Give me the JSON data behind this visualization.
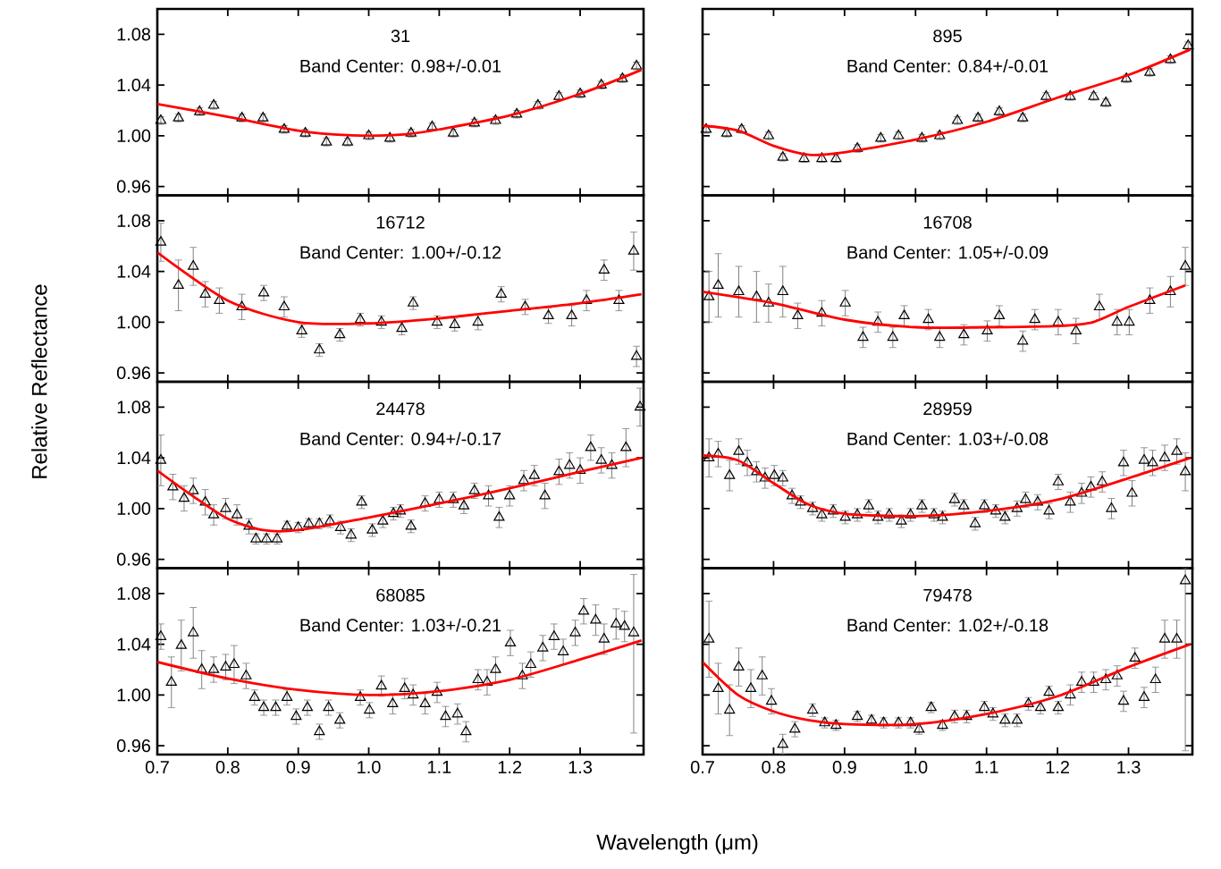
{
  "chart_data": [
    {
      "type": "scatter",
      "title": "31",
      "annotations": [
        "Band Center: 0.98+/-0.01"
      ],
      "xlim": [
        0.7,
        1.39
      ],
      "ylim": [
        0.953,
        1.1
      ],
      "xticks": [
        {
          "value": 0.7,
          "label": null
        },
        {
          "value": 0.8,
          "label": null
        },
        {
          "value": 0.9,
          "label": null
        },
        {
          "value": 1,
          "label": null
        },
        {
          "value": 1.1,
          "label": null
        },
        {
          "value": 1.2,
          "label": null
        },
        {
          "value": 1.3,
          "label": null
        }
      ],
      "yticks": [
        0.96,
        {
          "value": 1,
          "label": "1.00"
        },
        1.04,
        1.08
      ],
      "tick_labels": "y",
      "series": [
        {
          "color": "#000000",
          "marker": "triangle",
          "x": [
            0.705,
            0.73,
            0.76,
            0.78,
            0.82,
            0.85,
            0.88,
            0.91,
            0.94,
            0.97,
            1.0,
            1.03,
            1.06,
            1.09,
            1.12,
            1.15,
            1.18,
            1.21,
            1.24,
            1.27,
            1.3,
            1.33,
            1.36,
            1.38
          ],
          "values": [
            1.012,
            1.014,
            1.019,
            1.024,
            1.014,
            1.014,
            1.005,
            1.002,
            0.995,
            0.995,
            1.0,
            0.998,
            1.002,
            1.007,
            1.002,
            1.01,
            1.012,
            1.017,
            1.024,
            1.031,
            1.033,
            1.04,
            1.045,
            1.055
          ],
          "errors": [
            0.003,
            0.003,
            0.003,
            0.003,
            0.003,
            0.003,
            0.003,
            0.003,
            0.003,
            0.003,
            0.003,
            0.003,
            0.003,
            0.003,
            0.003,
            0.003,
            0.003,
            0.003,
            0.003,
            0.003,
            0.003,
            0.003,
            0.003,
            0.003
          ]
        },
        {
          "type": "line",
          "color": "#ff0000",
          "x": [
            0.7,
            0.8,
            0.9,
            0.95,
            1.0,
            1.05,
            1.1,
            1.2,
            1.3,
            1.387
          ],
          "values": [
            1.025,
            1.015,
            1.004,
            1.001,
            1.0,
            1.001,
            1.005,
            1.016,
            1.033,
            1.052
          ]
        }
      ]
    },
    {
      "type": "scatter",
      "title": "895",
      "annotations": [
        "Band Center: 0.84+/-0.01"
      ],
      "xlim": [
        0.7,
        1.39
      ],
      "ylim": [
        0.953,
        1.1
      ],
      "xticks": [
        {
          "value": 0.7,
          "label": null
        },
        {
          "value": 0.8,
          "label": null
        },
        {
          "value": 0.9,
          "label": null
        },
        {
          "value": 1,
          "label": null
        },
        {
          "value": 1.1,
          "label": null
        },
        {
          "value": 1.2,
          "label": null
        },
        {
          "value": 1.3,
          "label": null
        }
      ],
      "yticks": [
        {
          "value": 0.96,
          "label": null
        },
        {
          "value": 1,
          "label": null
        },
        {
          "value": 1.04,
          "label": null
        },
        {
          "value": 1.08,
          "label": null
        }
      ],
      "tick_labels": false,
      "series": [
        {
          "color": "#000000",
          "marker": "triangle",
          "x": [
            0.705,
            0.734,
            0.755,
            0.793,
            0.813,
            0.843,
            0.868,
            0.888,
            0.918,
            0.951,
            0.976,
            1.009,
            1.034,
            1.059,
            1.088,
            1.118,
            1.151,
            1.184,
            1.218,
            1.251,
            1.268,
            1.297,
            1.33,
            1.359,
            1.384
          ],
          "values": [
            1.005,
            1.002,
            1.005,
            1.0,
            0.983,
            0.982,
            0.982,
            0.982,
            0.99,
            0.998,
            1.0,
            0.998,
            1.0,
            1.012,
            1.014,
            1.019,
            1.014,
            1.031,
            1.031,
            1.031,
            1.026,
            1.045,
            1.05,
            1.06,
            1.071
          ],
          "errors": [
            0.003,
            0.003,
            0.003,
            0.003,
            0.003,
            0.003,
            0.003,
            0.003,
            0.003,
            0.003,
            0.003,
            0.003,
            0.003,
            0.003,
            0.003,
            0.003,
            0.003,
            0.003,
            0.003,
            0.003,
            0.003,
            0.003,
            0.003,
            0.003,
            0.003
          ]
        },
        {
          "type": "line",
          "color": "#ff0000",
          "x": [
            0.7,
            0.75,
            0.8,
            0.85,
            0.9,
            1.0,
            1.1,
            1.2,
            1.3,
            1.387
          ],
          "values": [
            1.008,
            1.004,
            0.992,
            0.985,
            0.987,
            0.997,
            1.011,
            1.03,
            1.048,
            1.068
          ]
        }
      ]
    },
    {
      "type": "scatter",
      "title": "16712",
      "annotations": [
        "Band Center: 1.00+/-0.12"
      ],
      "xlim": [
        0.7,
        1.39
      ],
      "ylim": [
        0.953,
        1.1
      ],
      "xticks": [
        {
          "value": 0.7,
          "label": null
        },
        {
          "value": 0.8,
          "label": null
        },
        {
          "value": 0.9,
          "label": null
        },
        {
          "value": 1,
          "label": null
        },
        {
          "value": 1.1,
          "label": null
        },
        {
          "value": 1.2,
          "label": null
        },
        {
          "value": 1.3,
          "label": null
        }
      ],
      "yticks": [
        0.96,
        {
          "value": 1,
          "label": "1.00"
        },
        1.04,
        1.08
      ],
      "tick_labels": "y",
      "series": [
        {
          "color": "#000000",
          "marker": "triangle",
          "x": [
            0.705,
            0.73,
            0.751,
            0.768,
            0.788,
            0.82,
            0.851,
            0.88,
            0.905,
            0.93,
            0.959,
            0.988,
            1.018,
            1.047,
            1.063,
            1.097,
            1.122,
            1.155,
            1.188,
            1.222,
            1.255,
            1.288,
            1.309,
            1.334,
            1.355,
            1.376,
            1.38
          ],
          "values": [
            1.063,
            1.029,
            1.044,
            1.022,
            1.017,
            1.012,
            1.023,
            1.012,
            0.993,
            0.978,
            0.99,
            1.002,
            1.0,
            0.995,
            1.015,
            1.0,
            0.998,
            1.0,
            1.022,
            1.012,
            1.005,
            1.005,
            1.017,
            1.041,
            1.017,
            1.056,
            0.973
          ],
          "errors": [
            0.015,
            0.02,
            0.015,
            0.01,
            0.01,
            0.01,
            0.006,
            0.008,
            0.005,
            0.005,
            0.005,
            0.005,
            0.005,
            0.005,
            0.005,
            0.005,
            0.005,
            0.006,
            0.006,
            0.006,
            0.006,
            0.008,
            0.008,
            0.008,
            0.008,
            0.015,
            0.008
          ]
        },
        {
          "type": "line",
          "color": "#ff0000",
          "x": [
            0.7,
            0.8,
            0.9,
            1.0,
            1.1,
            1.2,
            1.3,
            1.387
          ],
          "values": [
            1.055,
            1.017,
            1.0,
            0.999,
            1.003,
            1.009,
            1.015,
            1.022
          ]
        }
      ]
    },
    {
      "type": "scatter",
      "title": "16708",
      "annotations": [
        "Band Center: 1.05+/-0.09"
      ],
      "xlim": [
        0.7,
        1.39
      ],
      "ylim": [
        0.953,
        1.1
      ],
      "xticks": [
        {
          "value": 0.7,
          "label": null
        },
        {
          "value": 0.8,
          "label": null
        },
        {
          "value": 0.9,
          "label": null
        },
        {
          "value": 1,
          "label": null
        },
        {
          "value": 1.1,
          "label": null
        },
        {
          "value": 1.2,
          "label": null
        },
        {
          "value": 1.3,
          "label": null
        }
      ],
      "yticks": [
        {
          "value": 0.96,
          "label": null
        },
        {
          "value": 1,
          "label": null
        },
        {
          "value": 1.04,
          "label": null
        },
        {
          "value": 1.08,
          "label": null
        }
      ],
      "tick_labels": false,
      "series": [
        {
          "color": "#000000",
          "marker": "triangle",
          "x": [
            0.709,
            0.722,
            0.751,
            0.776,
            0.793,
            0.813,
            0.834,
            0.868,
            0.901,
            0.926,
            0.947,
            0.968,
            0.984,
            1.018,
            1.034,
            1.068,
            1.101,
            1.118,
            1.151,
            1.168,
            1.201,
            1.226,
            1.259,
            1.284,
            1.301,
            1.33,
            1.359,
            1.38
          ],
          "values": [
            1.02,
            1.029,
            1.024,
            1.02,
            1.015,
            1.024,
            1.005,
            1.007,
            1.015,
            0.988,
            1.0,
            0.988,
            1.005,
            1.002,
            0.988,
            0.99,
            0.993,
            1.005,
            0.985,
            1.002,
            1.0,
            0.993,
            1.012,
            1.0,
            1.0,
            1.017,
            1.024,
            1.044
          ],
          "errors": [
            0.02,
            0.025,
            0.02,
            0.02,
            0.015,
            0.02,
            0.01,
            0.01,
            0.01,
            0.008,
            0.008,
            0.008,
            0.008,
            0.008,
            0.008,
            0.008,
            0.008,
            0.008,
            0.008,
            0.008,
            0.01,
            0.01,
            0.01,
            0.01,
            0.01,
            0.01,
            0.012,
            0.015
          ]
        },
        {
          "type": "line",
          "color": "#ff0000",
          "x": [
            0.7,
            0.8,
            0.9,
            1.0,
            1.1,
            1.2,
            1.25,
            1.3,
            1.38
          ],
          "values": [
            1.024,
            1.015,
            1.002,
            0.996,
            0.996,
            0.997,
            1.0,
            1.012,
            1.029
          ]
        }
      ]
    },
    {
      "type": "scatter",
      "title": "24478",
      "annotations": [
        "Band Center: 0.94+/-0.17"
      ],
      "ylabel": "Relative Reflectance",
      "xlim": [
        0.7,
        1.39
      ],
      "ylim": [
        0.953,
        1.1
      ],
      "xticks": [
        {
          "value": 0.7,
          "label": null
        },
        {
          "value": 0.8,
          "label": null
        },
        {
          "value": 0.9,
          "label": null
        },
        {
          "value": 1,
          "label": null
        },
        {
          "value": 1.1,
          "label": null
        },
        {
          "value": 1.2,
          "label": null
        },
        {
          "value": 1.3,
          "label": null
        }
      ],
      "yticks": [
        0.96,
        {
          "value": 1,
          "label": "1.00"
        },
        1.04,
        1.08
      ],
      "tick_labels": "y",
      "series": [
        {
          "color": "#000000",
          "marker": "triangle",
          "x": [
            0.705,
            0.722,
            0.738,
            0.751,
            0.768,
            0.78,
            0.797,
            0.813,
            0.83,
            0.84,
            0.855,
            0.87,
            0.884,
            0.9,
            0.915,
            0.93,
            0.945,
            0.96,
            0.975,
            0.99,
            1.005,
            1.02,
            1.035,
            1.045,
            1.06,
            1.08,
            1.1,
            1.12,
            1.135,
            1.15,
            1.17,
            1.185,
            1.2,
            1.22,
            1.235,
            1.25,
            1.27,
            1.285,
            1.3,
            1.315,
            1.33,
            1.345,
            1.365,
            1.385
          ],
          "values": [
            1.038,
            1.017,
            1.008,
            1.014,
            1.005,
            0.995,
            1.0,
            0.995,
            0.986,
            0.976,
            0.976,
            0.976,
            0.986,
            0.985,
            0.988,
            0.988,
            0.99,
            0.985,
            0.979,
            1.005,
            0.983,
            0.99,
            0.996,
            0.998,
            0.986,
            1.004,
            1.007,
            1.007,
            1.002,
            1.014,
            1.01,
            0.993,
            1.01,
            1.022,
            1.026,
            1.01,
            1.029,
            1.034,
            1.03,
            1.048,
            1.038,
            1.034,
            1.048,
            1.08
          ],
          "errors": [
            0.02,
            0.01,
            0.01,
            0.01,
            0.01,
            0.008,
            0.008,
            0.008,
            0.006,
            0.004,
            0.004,
            0.004,
            0.004,
            0.004,
            0.004,
            0.004,
            0.005,
            0.005,
            0.005,
            0.005,
            0.005,
            0.005,
            0.005,
            0.005,
            0.005,
            0.006,
            0.006,
            0.006,
            0.006,
            0.006,
            0.008,
            0.008,
            0.008,
            0.008,
            0.008,
            0.01,
            0.01,
            0.01,
            0.01,
            0.01,
            0.01,
            0.01,
            0.015,
            0.015
          ]
        },
        {
          "type": "line",
          "color": "#ff0000",
          "x": [
            0.7,
            0.75,
            0.8,
            0.85,
            0.9,
            1.0,
            1.1,
            1.2,
            1.3,
            1.387
          ],
          "values": [
            1.03,
            1.01,
            0.992,
            0.983,
            0.983,
            0.993,
            1.004,
            1.016,
            1.029,
            1.04
          ]
        }
      ]
    },
    {
      "type": "scatter",
      "title": "28959",
      "annotations": [
        "Band Center: 1.03+/-0.08"
      ],
      "xlim": [
        0.7,
        1.39
      ],
      "ylim": [
        0.953,
        1.1
      ],
      "xticks": [
        {
          "value": 0.7,
          "label": null
        },
        {
          "value": 0.8,
          "label": null
        },
        {
          "value": 0.9,
          "label": null
        },
        {
          "value": 1,
          "label": null
        },
        {
          "value": 1.1,
          "label": null
        },
        {
          "value": 1.2,
          "label": null
        },
        {
          "value": 1.3,
          "label": null
        }
      ],
      "yticks": [
        {
          "value": 0.96,
          "label": null
        },
        {
          "value": 1,
          "label": null
        },
        {
          "value": 1.04,
          "label": null
        },
        {
          "value": 1.08,
          "label": null
        }
      ],
      "tick_labels": false,
      "series": [
        {
          "color": "#000000",
          "marker": "triangle",
          "x": [
            0.709,
            0.722,
            0.738,
            0.751,
            0.763,
            0.776,
            0.788,
            0.801,
            0.813,
            0.826,
            0.838,
            0.855,
            0.868,
            0.884,
            0.901,
            0.918,
            0.934,
            0.947,
            0.963,
            0.98,
            0.993,
            1.009,
            1.026,
            1.038,
            1.055,
            1.068,
            1.084,
            1.097,
            1.113,
            1.126,
            1.143,
            1.155,
            1.172,
            1.188,
            1.201,
            1.218,
            1.234,
            1.247,
            1.263,
            1.276,
            1.293,
            1.305,
            1.322,
            1.334,
            1.351,
            1.368,
            1.38
          ],
          "values": [
            1.04,
            1.043,
            1.026,
            1.045,
            1.036,
            1.029,
            1.024,
            1.026,
            1.024,
            1.01,
            1.005,
            1.0,
            0.995,
            0.998,
            0.993,
            0.995,
            1.002,
            0.993,
            0.995,
            0.99,
            0.995,
            1.002,
            0.995,
            0.993,
            1.007,
            1.002,
            0.988,
            1.002,
            0.998,
            0.993,
            1.0,
            1.007,
            1.005,
            0.998,
            1.021,
            1.005,
            1.012,
            1.017,
            1.021,
            1.0,
            1.036,
            1.012,
            1.038,
            1.036,
            1.04,
            1.045,
            1.029
          ],
          "errors": [
            0.015,
            0.01,
            0.012,
            0.01,
            0.01,
            0.008,
            0.008,
            0.008,
            0.006,
            0.006,
            0.005,
            0.005,
            0.005,
            0.005,
            0.005,
            0.005,
            0.005,
            0.005,
            0.005,
            0.005,
            0.005,
            0.005,
            0.005,
            0.005,
            0.005,
            0.005,
            0.005,
            0.005,
            0.005,
            0.005,
            0.006,
            0.006,
            0.006,
            0.006,
            0.006,
            0.008,
            0.008,
            0.008,
            0.008,
            0.008,
            0.01,
            0.01,
            0.01,
            0.01,
            0.01,
            0.01,
            0.015
          ]
        },
        {
          "type": "line",
          "color": "#ff0000",
          "x": [
            0.7,
            0.75,
            0.8,
            0.85,
            0.9,
            1.0,
            1.1,
            1.2,
            1.3,
            1.387
          ],
          "values": [
            1.042,
            1.038,
            1.02,
            1.003,
            0.996,
            0.994,
            0.998,
            1.007,
            1.024,
            1.04
          ]
        }
      ]
    },
    {
      "type": "scatter",
      "title": "68085",
      "annotations": [
        "Band Center: 1.03+/-0.21"
      ],
      "xlabel": "Wavelength (μm)",
      "xlim": [
        0.7,
        1.39
      ],
      "ylim": [
        0.953,
        1.1
      ],
      "xticks": [
        0.7,
        0.8,
        0.9,
        {
          "value": 1,
          "label": "1.0"
        },
        1.1,
        1.2,
        1.3
      ],
      "yticks": [
        0.96,
        {
          "value": 1,
          "label": "1.00"
        },
        1.04,
        1.08
      ],
      "series": [
        {
          "color": "#000000",
          "marker": "triangle",
          "x": [
            0.705,
            0.72,
            0.734,
            0.751,
            0.763,
            0.78,
            0.797,
            0.809,
            0.826,
            0.838,
            0.851,
            0.868,
            0.884,
            0.897,
            0.913,
            0.93,
            0.943,
            0.959,
            0.988,
            1.001,
            1.018,
            1.034,
            1.051,
            1.063,
            1.08,
            1.097,
            1.109,
            1.126,
            1.138,
            1.155,
            1.168,
            1.18,
            1.201,
            1.218,
            1.23,
            1.247,
            1.263,
            1.276,
            1.293,
            1.305,
            1.322,
            1.334,
            1.351,
            1.363,
            1.376
          ],
          "values": [
            1.046,
            1.01,
            1.039,
            1.049,
            1.02,
            1.02,
            1.022,
            1.024,
            1.015,
            0.998,
            0.99,
            0.99,
            0.998,
            0.983,
            0.99,
            0.971,
            0.99,
            0.98,
            0.998,
            0.988,
            1.007,
            0.993,
            1.005,
            1.0,
            0.993,
            1.002,
            0.983,
            0.985,
            0.971,
            1.012,
            1.01,
            1.02,
            1.041,
            1.015,
            1.024,
            1.037,
            1.046,
            1.034,
            1.049,
            1.066,
            1.059,
            1.044,
            1.056,
            1.054,
            1.049
          ],
          "errors": [
            0.01,
            0.02,
            0.02,
            0.02,
            0.015,
            0.01,
            0.01,
            0.015,
            0.01,
            0.006,
            0.006,
            0.006,
            0.006,
            0.006,
            0.006,
            0.006,
            0.006,
            0.006,
            0.006,
            0.006,
            0.008,
            0.008,
            0.008,
            0.008,
            0.008,
            0.008,
            0.008,
            0.008,
            0.008,
            0.008,
            0.01,
            0.01,
            0.01,
            0.01,
            0.01,
            0.01,
            0.01,
            0.01,
            0.01,
            0.01,
            0.012,
            0.012,
            0.012,
            0.012,
            [
              0.97,
              1.095
            ]
          ]
        },
        {
          "type": "line",
          "color": "#ff0000",
          "x": [
            0.7,
            0.8,
            0.9,
            1.0,
            1.1,
            1.2,
            1.3,
            1.387
          ],
          "values": [
            1.026,
            1.013,
            1.004,
            1.0,
            1.003,
            1.012,
            1.028,
            1.043
          ]
        }
      ]
    },
    {
      "type": "scatter",
      "title": "79478",
      "annotations": [
        "Band Center: 1.02+/-0.18"
      ],
      "xlim": [
        0.7,
        1.39
      ],
      "ylim": [
        0.953,
        1.1
      ],
      "xticks": [
        0.7,
        0.8,
        0.9,
        {
          "value": 1,
          "label": "1.0"
        },
        1.1,
        1.2,
        1.3
      ],
      "yticks": [
        {
          "value": 0.96,
          "label": null
        },
        {
          "value": 1,
          "label": null
        },
        {
          "value": 1.04,
          "label": null
        },
        {
          "value": 1.08,
          "label": null
        }
      ],
      "tick_labels": "x",
      "series": [
        {
          "color": "#000000",
          "marker": "triangle",
          "x": [
            0.709,
            0.722,
            0.738,
            0.751,
            0.768,
            0.784,
            0.797,
            0.813,
            0.83,
            0.855,
            0.872,
            0.888,
            0.918,
            0.938,
            0.955,
            0.976,
            0.993,
            1.005,
            1.022,
            1.038,
            1.055,
            1.072,
            1.097,
            1.109,
            1.126,
            1.143,
            1.159,
            1.176,
            1.188,
            1.201,
            1.218,
            1.234,
            1.251,
            1.268,
            1.284,
            1.293,
            1.309,
            1.322,
            1.338,
            1.351,
            1.368,
            1.38
          ],
          "values": [
            1.044,
            1.005,
            0.988,
            1.022,
            1.005,
            1.015,
            0.995,
            0.961,
            0.973,
            0.988,
            0.978,
            0.976,
            0.983,
            0.98,
            0.978,
            0.978,
            0.978,
            0.973,
            0.99,
            0.976,
            0.983,
            0.983,
            0.99,
            0.985,
            0.98,
            0.98,
            0.993,
            0.99,
            1.002,
            0.99,
            1.0,
            1.01,
            1.01,
            1.012,
            1.015,
            0.995,
            1.029,
            0.998,
            1.012,
            1.044,
            1.044,
            1.09
          ],
          "errors": [
            0.03,
            0.02,
            0.02,
            0.015,
            0.015,
            0.015,
            0.01,
            0.008,
            0.006,
            0.005,
            0.004,
            0.004,
            0.004,
            0.004,
            0.004,
            0.004,
            0.004,
            0.004,
            0.004,
            0.004,
            0.005,
            0.005,
            0.005,
            0.005,
            0.005,
            0.005,
            0.005,
            0.005,
            0.005,
            0.005,
            0.008,
            0.008,
            0.008,
            0.008,
            0.008,
            0.008,
            0.008,
            0.008,
            0.01,
            0.015,
            0.015,
            [
              0.956,
              1.1
            ]
          ]
        },
        {
          "type": "line",
          "color": "#ff0000",
          "x": [
            0.7,
            0.75,
            0.8,
            0.85,
            0.9,
            1.0,
            1.1,
            1.2,
            1.3,
            1.387
          ],
          "values": [
            1.026,
            1.0,
            0.987,
            0.98,
            0.977,
            0.977,
            0.985,
            0.999,
            1.022,
            1.04
          ]
        }
      ]
    }
  ]
}
